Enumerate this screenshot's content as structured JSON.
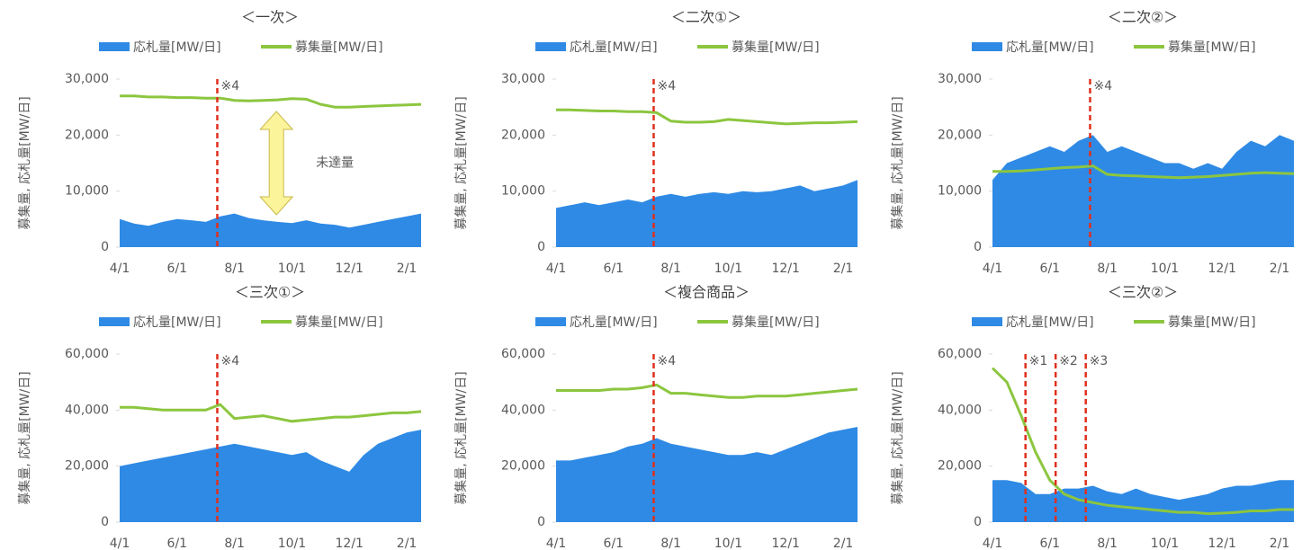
{
  "chart_data": [
    {
      "type": "area_line",
      "title": "＜一次＞",
      "y_label": "募集量, 応札量[MW/日]",
      "categories": [
        "4/1",
        null,
        null,
        null,
        "6/1",
        null,
        null,
        null,
        "8/1",
        null,
        null,
        null,
        "10/1",
        null,
        null,
        null,
        "12/1",
        null,
        null,
        null,
        "2/1",
        null
      ],
      "series": [
        {
          "name": "応札量[MW/日]",
          "color": "#2f8ae5",
          "kind": "area",
          "values": [
            5000,
            4200,
            3800,
            4500,
            5000,
            4800,
            4500,
            5500,
            6000,
            5200,
            4800,
            4500,
            4300,
            4800,
            4200,
            4000,
            3500,
            4000,
            4500,
            5000,
            5500,
            6000
          ]
        },
        {
          "name": "募集量[MW/日]",
          "color": "#8cc63f",
          "kind": "line",
          "values": [
            27000,
            27000,
            26800,
            26800,
            26700,
            26700,
            26600,
            26600,
            26200,
            26100,
            26200,
            26300,
            26500,
            26400,
            25500,
            25000,
            25000,
            25100,
            25200,
            25300,
            25400,
            25500
          ]
        }
      ],
      "ylim": [
        0,
        30000
      ],
      "yticks": [
        0,
        {
          "value": 10000,
          "label": "10,000"
        },
        {
          "value": 20000,
          "label": "20,000"
        },
        {
          "value": 30000,
          "label": "30,000"
        }
      ],
      "markers": [
        {
          "text": "※4",
          "at": 6.8
        }
      ],
      "gap_label": "未達量"
    },
    {
      "type": "area_line",
      "title": "＜二次①＞",
      "y_label": "募集量, 応札量[MW/日]",
      "categories": [
        "4/1",
        null,
        null,
        null,
        "6/1",
        null,
        null,
        null,
        "8/1",
        null,
        null,
        null,
        "10/1",
        null,
        null,
        null,
        "12/1",
        null,
        null,
        null,
        "2/1",
        null
      ],
      "series": [
        {
          "name": "応札量[MW/日]",
          "color": "#2f8ae5",
          "kind": "area",
          "values": [
            7000,
            7500,
            8000,
            7500,
            8000,
            8500,
            8000,
            9000,
            9500,
            9000,
            9500,
            9800,
            9500,
            10000,
            9800,
            10000,
            10500,
            11000,
            10000,
            10500,
            11000,
            12000
          ]
        },
        {
          "name": "募集量[MW/日]",
          "color": "#8cc63f",
          "kind": "line",
          "values": [
            24500,
            24500,
            24400,
            24300,
            24300,
            24200,
            24200,
            24000,
            22500,
            22300,
            22300,
            22400,
            22800,
            22600,
            22400,
            22200,
            22000,
            22100,
            22200,
            22200,
            22300,
            22400
          ]
        }
      ],
      "ylim": [
        0,
        30000
      ],
      "yticks": [
        0,
        {
          "value": 10000,
          "label": "10,000"
        },
        {
          "value": 20000,
          "label": "20,000"
        },
        {
          "value": 30000,
          "label": "30,000"
        }
      ],
      "markers": [
        {
          "text": "※4",
          "at": 6.8
        }
      ]
    },
    {
      "type": "area_line",
      "title": "＜二次②＞",
      "y_label": "募集量, 応札量[MW/日]",
      "categories": [
        "4/1",
        null,
        null,
        null,
        "6/1",
        null,
        null,
        null,
        "8/1",
        null,
        null,
        null,
        "10/1",
        null,
        null,
        null,
        "12/1",
        null,
        null,
        null,
        "2/1",
        null
      ],
      "series": [
        {
          "name": "応札量[MW/日]",
          "color": "#2f8ae5",
          "kind": "area",
          "values": [
            12000,
            15000,
            16000,
            17000,
            18000,
            17000,
            19000,
            20000,
            17000,
            18000,
            17000,
            16000,
            15000,
            15000,
            14000,
            15000,
            14000,
            17000,
            19000,
            18000,
            20000,
            19000
          ]
        },
        {
          "name": "募集量[MW/日]",
          "color": "#8cc63f",
          "kind": "line",
          "values": [
            13500,
            13500,
            13600,
            13800,
            14000,
            14200,
            14300,
            14500,
            13000,
            12800,
            12700,
            12600,
            12500,
            12400,
            12500,
            12600,
            12800,
            13000,
            13200,
            13300,
            13200,
            13100
          ]
        }
      ],
      "ylim": [
        0,
        30000
      ],
      "yticks": [
        0,
        {
          "value": 10000,
          "label": "10,000"
        },
        {
          "value": 20000,
          "label": "20,000"
        },
        {
          "value": 30000,
          "label": "30,000"
        }
      ],
      "markers": [
        {
          "text": "※4",
          "at": 6.8
        }
      ]
    },
    {
      "type": "area_line",
      "title": "＜三次①＞",
      "y_label": "募集量, 応札量[MW/日]",
      "categories": [
        "4/1",
        null,
        null,
        null,
        "6/1",
        null,
        null,
        null,
        "8/1",
        null,
        null,
        null,
        "10/1",
        null,
        null,
        null,
        "12/1",
        null,
        null,
        null,
        "2/1",
        null
      ],
      "series": [
        {
          "name": "応札量[MW/日]",
          "color": "#2f8ae5",
          "kind": "area",
          "values": [
            20000,
            21000,
            22000,
            23000,
            24000,
            25000,
            26000,
            27000,
            28000,
            27000,
            26000,
            25000,
            24000,
            25000,
            22000,
            20000,
            18000,
            24000,
            28000,
            30000,
            32000,
            33000
          ]
        },
        {
          "name": "募集量[MW/日]",
          "color": "#8cc63f",
          "kind": "line",
          "values": [
            41000,
            41000,
            40500,
            40000,
            40000,
            40000,
            40000,
            42000,
            37000,
            37500,
            38000,
            37000,
            36000,
            36500,
            37000,
            37500,
            37500,
            38000,
            38500,
            39000,
            39000,
            39500
          ]
        }
      ],
      "ylim": [
        0,
        60000
      ],
      "yticks": [
        0,
        {
          "value": 20000,
          "label": "20,000"
        },
        {
          "value": 40000,
          "label": "40,000"
        },
        {
          "value": 60000,
          "label": "60,000"
        }
      ],
      "markers": [
        {
          "text": "※4",
          "at": 6.8
        }
      ]
    },
    {
      "type": "area_line",
      "title": "＜複合商品＞",
      "y_label": "募集量, 応札量[MW/日]",
      "categories": [
        "4/1",
        null,
        null,
        null,
        "6/1",
        null,
        null,
        null,
        "8/1",
        null,
        null,
        null,
        "10/1",
        null,
        null,
        null,
        "12/1",
        null,
        null,
        null,
        "2/1",
        null
      ],
      "series": [
        {
          "name": "応札量[MW/日]",
          "color": "#2f8ae5",
          "kind": "area",
          "values": [
            22000,
            22000,
            23000,
            24000,
            25000,
            27000,
            28000,
            30000,
            28000,
            27000,
            26000,
            25000,
            24000,
            24000,
            25000,
            24000,
            26000,
            28000,
            30000,
            32000,
            33000,
            34000
          ]
        },
        {
          "name": "募集量[MW/日]",
          "color": "#8cc63f",
          "kind": "line",
          "values": [
            47000,
            47000,
            47000,
            47000,
            47500,
            47500,
            48000,
            49000,
            46000,
            46000,
            45500,
            45000,
            44500,
            44500,
            45000,
            45000,
            45000,
            45500,
            46000,
            46500,
            47000,
            47500
          ]
        }
      ],
      "ylim": [
        0,
        60000
      ],
      "yticks": [
        0,
        {
          "value": 20000,
          "label": "20,000"
        },
        {
          "value": 40000,
          "label": "40,000"
        },
        {
          "value": 60000,
          "label": "60,000"
        }
      ],
      "markers": [
        {
          "text": "※4",
          "at": 6.8
        }
      ]
    },
    {
      "type": "area_line",
      "title": "＜三次②＞",
      "y_label": "募集量, 応札量[MW/日]",
      "categories": [
        "4/1",
        null,
        null,
        null,
        "6/1",
        null,
        null,
        null,
        "8/1",
        null,
        null,
        null,
        "10/1",
        null,
        null,
        null,
        "12/1",
        null,
        null,
        null,
        "2/1",
        null
      ],
      "series": [
        {
          "name": "応札量[MW/日]",
          "color": "#2f8ae5",
          "kind": "area",
          "values": [
            15000,
            15000,
            14000,
            10000,
            10000,
            12000,
            12000,
            13000,
            11000,
            10000,
            12000,
            10000,
            9000,
            8000,
            9000,
            10000,
            12000,
            13000,
            13000,
            14000,
            15000,
            15000
          ]
        },
        {
          "name": "募集量[MW/日]",
          "color": "#8cc63f",
          "kind": "line",
          "values": [
            55000,
            50000,
            38000,
            25000,
            15000,
            10000,
            8000,
            7000,
            6000,
            5500,
            5000,
            4500,
            4000,
            3500,
            3500,
            3000,
            3200,
            3500,
            4000,
            4000,
            4500,
            4500
          ]
        }
      ],
      "ylim": [
        0,
        60000
      ],
      "yticks": [
        0,
        {
          "value": 20000,
          "label": "20,000"
        },
        {
          "value": 40000,
          "label": "40,000"
        },
        {
          "value": 60000,
          "label": "60,000"
        }
      ],
      "markers": [
        {
          "text": "※1",
          "at": 2.3
        },
        {
          "text": "※2",
          "at": 4.4
        },
        {
          "text": "※3",
          "at": 6.5
        }
      ]
    }
  ]
}
